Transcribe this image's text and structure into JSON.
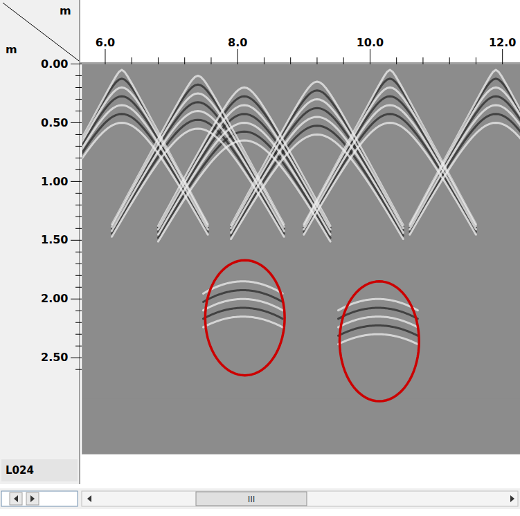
{
  "chart_data": {
    "type": "radargram",
    "x_unit": "m",
    "y_unit": "m",
    "line_name": "L024",
    "xlim": [
      5.65,
      12.27
    ],
    "ylim": [
      0,
      3.32
    ],
    "xticks": [
      {
        "value": 6,
        "label": "6.0"
      },
      {
        "value": 8,
        "label": "8.0"
      },
      {
        "value": 10,
        "label": "10.0"
      },
      {
        "value": 12,
        "label": "12.0"
      }
    ],
    "xminor": [
      6.4,
      6.8,
      7.2,
      7.6,
      8.4,
      8.8,
      9.2,
      9.6,
      10.4,
      10.8,
      11.2,
      11.6
    ],
    "yticks": [
      {
        "value": 0,
        "label": "0.00"
      },
      {
        "value": 0.5,
        "label": "0.50"
      },
      {
        "value": 1,
        "label": "1.00"
      },
      {
        "value": 1.5,
        "label": "1.50"
      },
      {
        "value": 2,
        "label": "2.00"
      },
      {
        "value": 2.5,
        "label": "2.50"
      }
    ],
    "yminor": [
      0.1,
      0.2,
      0.3,
      0.4,
      0.6,
      0.7,
      0.8,
      0.9,
      1.1,
      1.2,
      1.3,
      1.4,
      1.6,
      1.7,
      1.8,
      1.9,
      2.1,
      2.2,
      2.3,
      2.4,
      2.6
    ],
    "signal_end": 2.85,
    "reflectors": [
      {
        "x": 6.25,
        "y": 0.05
      },
      {
        "x": 7.4,
        "y": 0.1
      },
      {
        "x": 8.1,
        "y": 0.2
      },
      {
        "x": 9.2,
        "y": 0.15
      },
      {
        "x": 10.3,
        "y": 0.05
      },
      {
        "x": 11.9,
        "y": 0.05
      },
      {
        "x": 8.08,
        "y": 1.85
      },
      {
        "x": 10.12,
        "y": 2.0
      }
    ],
    "highlights": [
      {
        "x": 8.11,
        "y": 2.16,
        "rx": 0.6,
        "ry": 0.49,
        "color": "#cc0000"
      },
      {
        "x": 10.14,
        "y": 2.36,
        "rx": 0.6,
        "ry": 0.51,
        "color": "#cc0000"
      }
    ],
    "scrollbar_label": "III"
  }
}
